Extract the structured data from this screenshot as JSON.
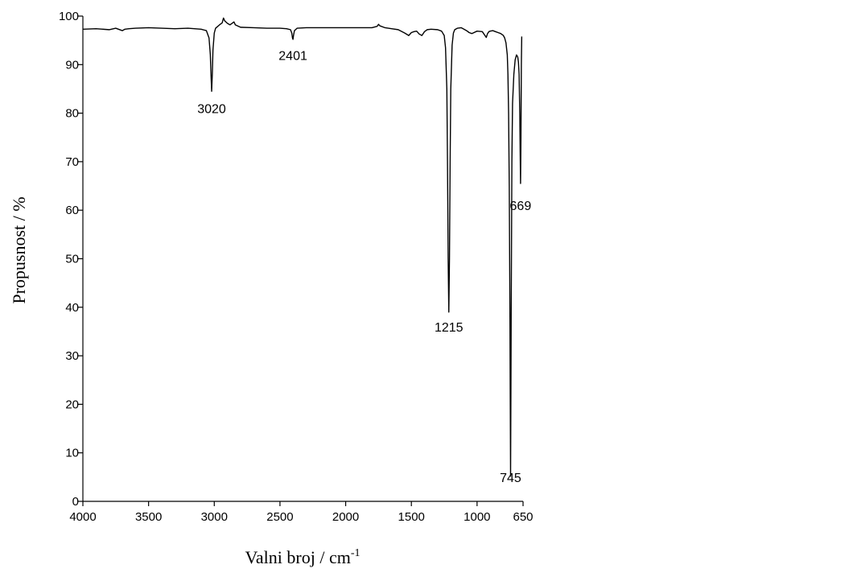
{
  "chart_data": {
    "type": "line",
    "xlabel": "Valni broj / cm",
    "xlabel_superscript": "-1",
    "ylabel": "Propusnost / %",
    "xlim": [
      4000,
      650
    ],
    "ylim": [
      0,
      100
    ],
    "x_reversed": true,
    "x_ticks": [
      4000,
      3500,
      3000,
      2500,
      2000,
      1500,
      1000,
      650
    ],
    "y_ticks": [
      0,
      10,
      20,
      30,
      40,
      50,
      60,
      70,
      80,
      90,
      100
    ],
    "grid": false,
    "series": [
      {
        "x": [
          4000,
          3900,
          3800,
          3750,
          3700,
          3680,
          3650,
          3600,
          3500,
          3400,
          3300,
          3200,
          3100,
          3060,
          3040,
          3030,
          3025,
          3020,
          3015,
          3010,
          3000,
          2990,
          2960,
          2940,
          2930,
          2920,
          2900,
          2880,
          2860,
          2850,
          2840,
          2800,
          2700,
          2600,
          2500,
          2450,
          2420,
          2410,
          2405,
          2401,
          2397,
          2390,
          2370,
          2300,
          2200,
          2100,
          2000,
          1900,
          1800,
          1760,
          1750,
          1740,
          1700,
          1650,
          1600,
          1550,
          1520,
          1500,
          1480,
          1460,
          1440,
          1420,
          1400,
          1380,
          1350,
          1300,
          1270,
          1250,
          1240,
          1230,
          1225,
          1220,
          1215,
          1210,
          1205,
          1200,
          1190,
          1180,
          1170,
          1150,
          1120,
          1100,
          1080,
          1060,
          1040,
          1000,
          960,
          930,
          920,
          910,
          900,
          880,
          860,
          840,
          820,
          800,
          790,
          780,
          770,
          765,
          760,
          755,
          750,
          745,
          740,
          735,
          730,
          720,
          710,
          700,
          695,
          690,
          685,
          680,
          675,
          672,
          669,
          666,
          663,
          660
        ],
        "y": [
          97.3,
          97.4,
          97.2,
          97.5,
          97.0,
          97.3,
          97.4,
          97.5,
          97.6,
          97.5,
          97.4,
          97.5,
          97.3,
          97.0,
          95.5,
          92,
          88,
          84.5,
          88,
          93,
          96.5,
          97.5,
          98.2,
          98.6,
          99.6,
          99.0,
          98.5,
          98.2,
          98.6,
          98.8,
          98.2,
          97.7,
          97.6,
          97.5,
          97.5,
          97.4,
          97.2,
          96.5,
          95.5,
          95.2,
          96.0,
          97.0,
          97.5,
          97.6,
          97.6,
          97.6,
          97.6,
          97.6,
          97.6,
          97.9,
          98.3,
          98.0,
          97.6,
          97.4,
          97.2,
          96.5,
          96.0,
          96.6,
          96.8,
          96.9,
          96.3,
          96.0,
          96.8,
          97.2,
          97.3,
          97.2,
          96.9,
          96.0,
          93.5,
          85,
          70,
          50,
          39,
          50,
          70,
          85,
          94,
          96.5,
          97.2,
          97.5,
          97.6,
          97.3,
          97.0,
          96.6,
          96.4,
          96.9,
          96.8,
          95.6,
          96.4,
          96.8,
          96.9,
          97.0,
          96.8,
          96.6,
          96.4,
          96.0,
          95.5,
          94.5,
          92,
          88,
          80,
          65,
          40,
          5.2,
          40,
          70,
          82,
          88,
          91,
          92,
          91.8,
          91.5,
          90.5,
          88,
          80,
          72,
          65.5,
          75,
          90,
          95.8
        ]
      }
    ],
    "annotations": [
      {
        "text": "3020",
        "x": 3020,
        "y": 80
      },
      {
        "text": "2401",
        "x": 2401,
        "y": 91
      },
      {
        "text": "1215",
        "x": 1215,
        "y": 35
      },
      {
        "text": "745",
        "x": 745,
        "y": 4
      },
      {
        "text": "669",
        "x": 669,
        "y": 60
      }
    ]
  }
}
